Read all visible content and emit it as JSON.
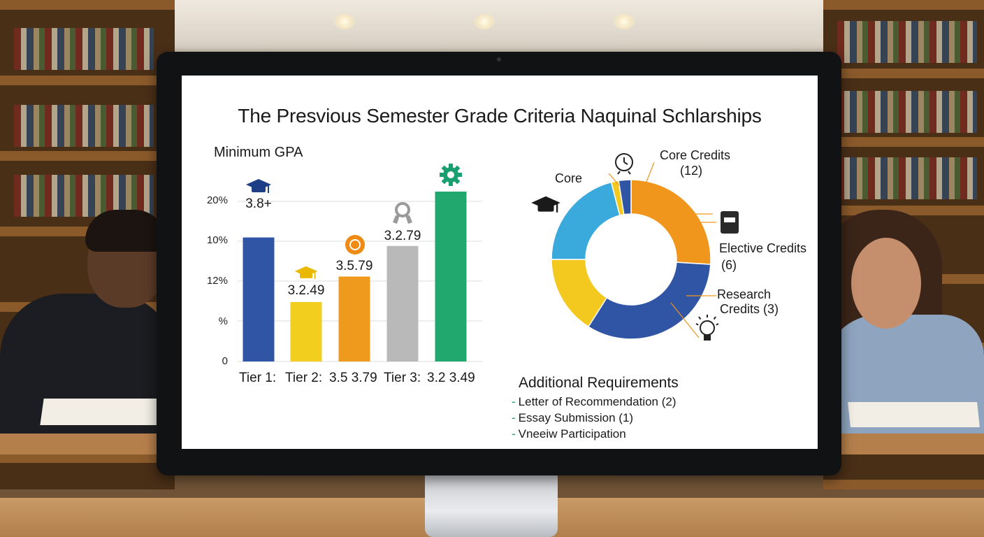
{
  "screen": {
    "title": "The Presvious Semester Grade Criteria Naquinal Schlarships"
  },
  "chart_data": [
    {
      "type": "bar",
      "title": "Minimum GPA",
      "yticks": [
        "20%",
        "10%",
        "12%",
        "%",
        "0"
      ],
      "categories": [
        "Tier 1:",
        "Tier 2:  3.5  3.79",
        "Tier 3:  3.2  3.49"
      ],
      "x_labels": [
        "Tier 1:",
        "Tier 2:",
        "3.5 3.79",
        "Tier 3:",
        "3.2 3.49"
      ],
      "bars": [
        {
          "label": "3.8+",
          "value": 0.73,
          "color": "#2f55a4",
          "icon": "graduation-cap-icon"
        },
        {
          "label": "3.2.49",
          "value": 0.35,
          "color": "#f2cf1e",
          "icon": "graduation-cap-icon"
        },
        {
          "label": "3.5.79",
          "value": 0.5,
          "color": "#ef9a1c",
          "icon": "medal-icon"
        },
        {
          "label": "3.2.79",
          "value": 0.68,
          "color": "#b9b9b9",
          "icon": "award-ribbon-icon"
        },
        {
          "label": "",
          "value": 1.0,
          "color": "#21a86e",
          "icon": "gear-icon"
        }
      ],
      "ylim": [
        0,
        1
      ],
      "grid": true
    },
    {
      "type": "pie",
      "variant": "donut",
      "slices": [
        {
          "label": "Core Credits (12)",
          "value": 26,
          "color": "#f0961c"
        },
        {
          "label": "Research Credits (3)",
          "value": 33,
          "color": "#2f55a4"
        },
        {
          "label": "Elective",
          "value": 16,
          "color": "#f4c91f"
        },
        {
          "label": "Core",
          "value": 21,
          "color": "#3aa9dc"
        },
        {
          "label": "",
          "value": 1.5,
          "color": "#f4c91f"
        },
        {
          "label": "",
          "value": 2.5,
          "color": "#2f55a4"
        }
      ],
      "labels": {
        "core": "Core",
        "core_credits_1": "Core Credits",
        "core_credits_2": "(12)",
        "elective_1": "Elective Credits",
        "elective_2": "(6)",
        "research_1": "Research",
        "research_2": "Credits (3)"
      },
      "icons": [
        "clock-icon",
        "graduation-cap-icon",
        "book-icon",
        "lightbulb-icon"
      ]
    }
  ],
  "requirements": {
    "heading": "Additional Requirements",
    "items": [
      "Letter of Recommendation (2)",
      "Essay Submission (1)",
      "Vneeiw Participation"
    ],
    "dash": "-"
  },
  "colors": {
    "blue": "#2f55a4",
    "yellow": "#f2cf1e",
    "orange": "#ef9a1c",
    "gray": "#b9b9b9",
    "green": "#21a86e",
    "cyan": "#3aa9dc"
  }
}
